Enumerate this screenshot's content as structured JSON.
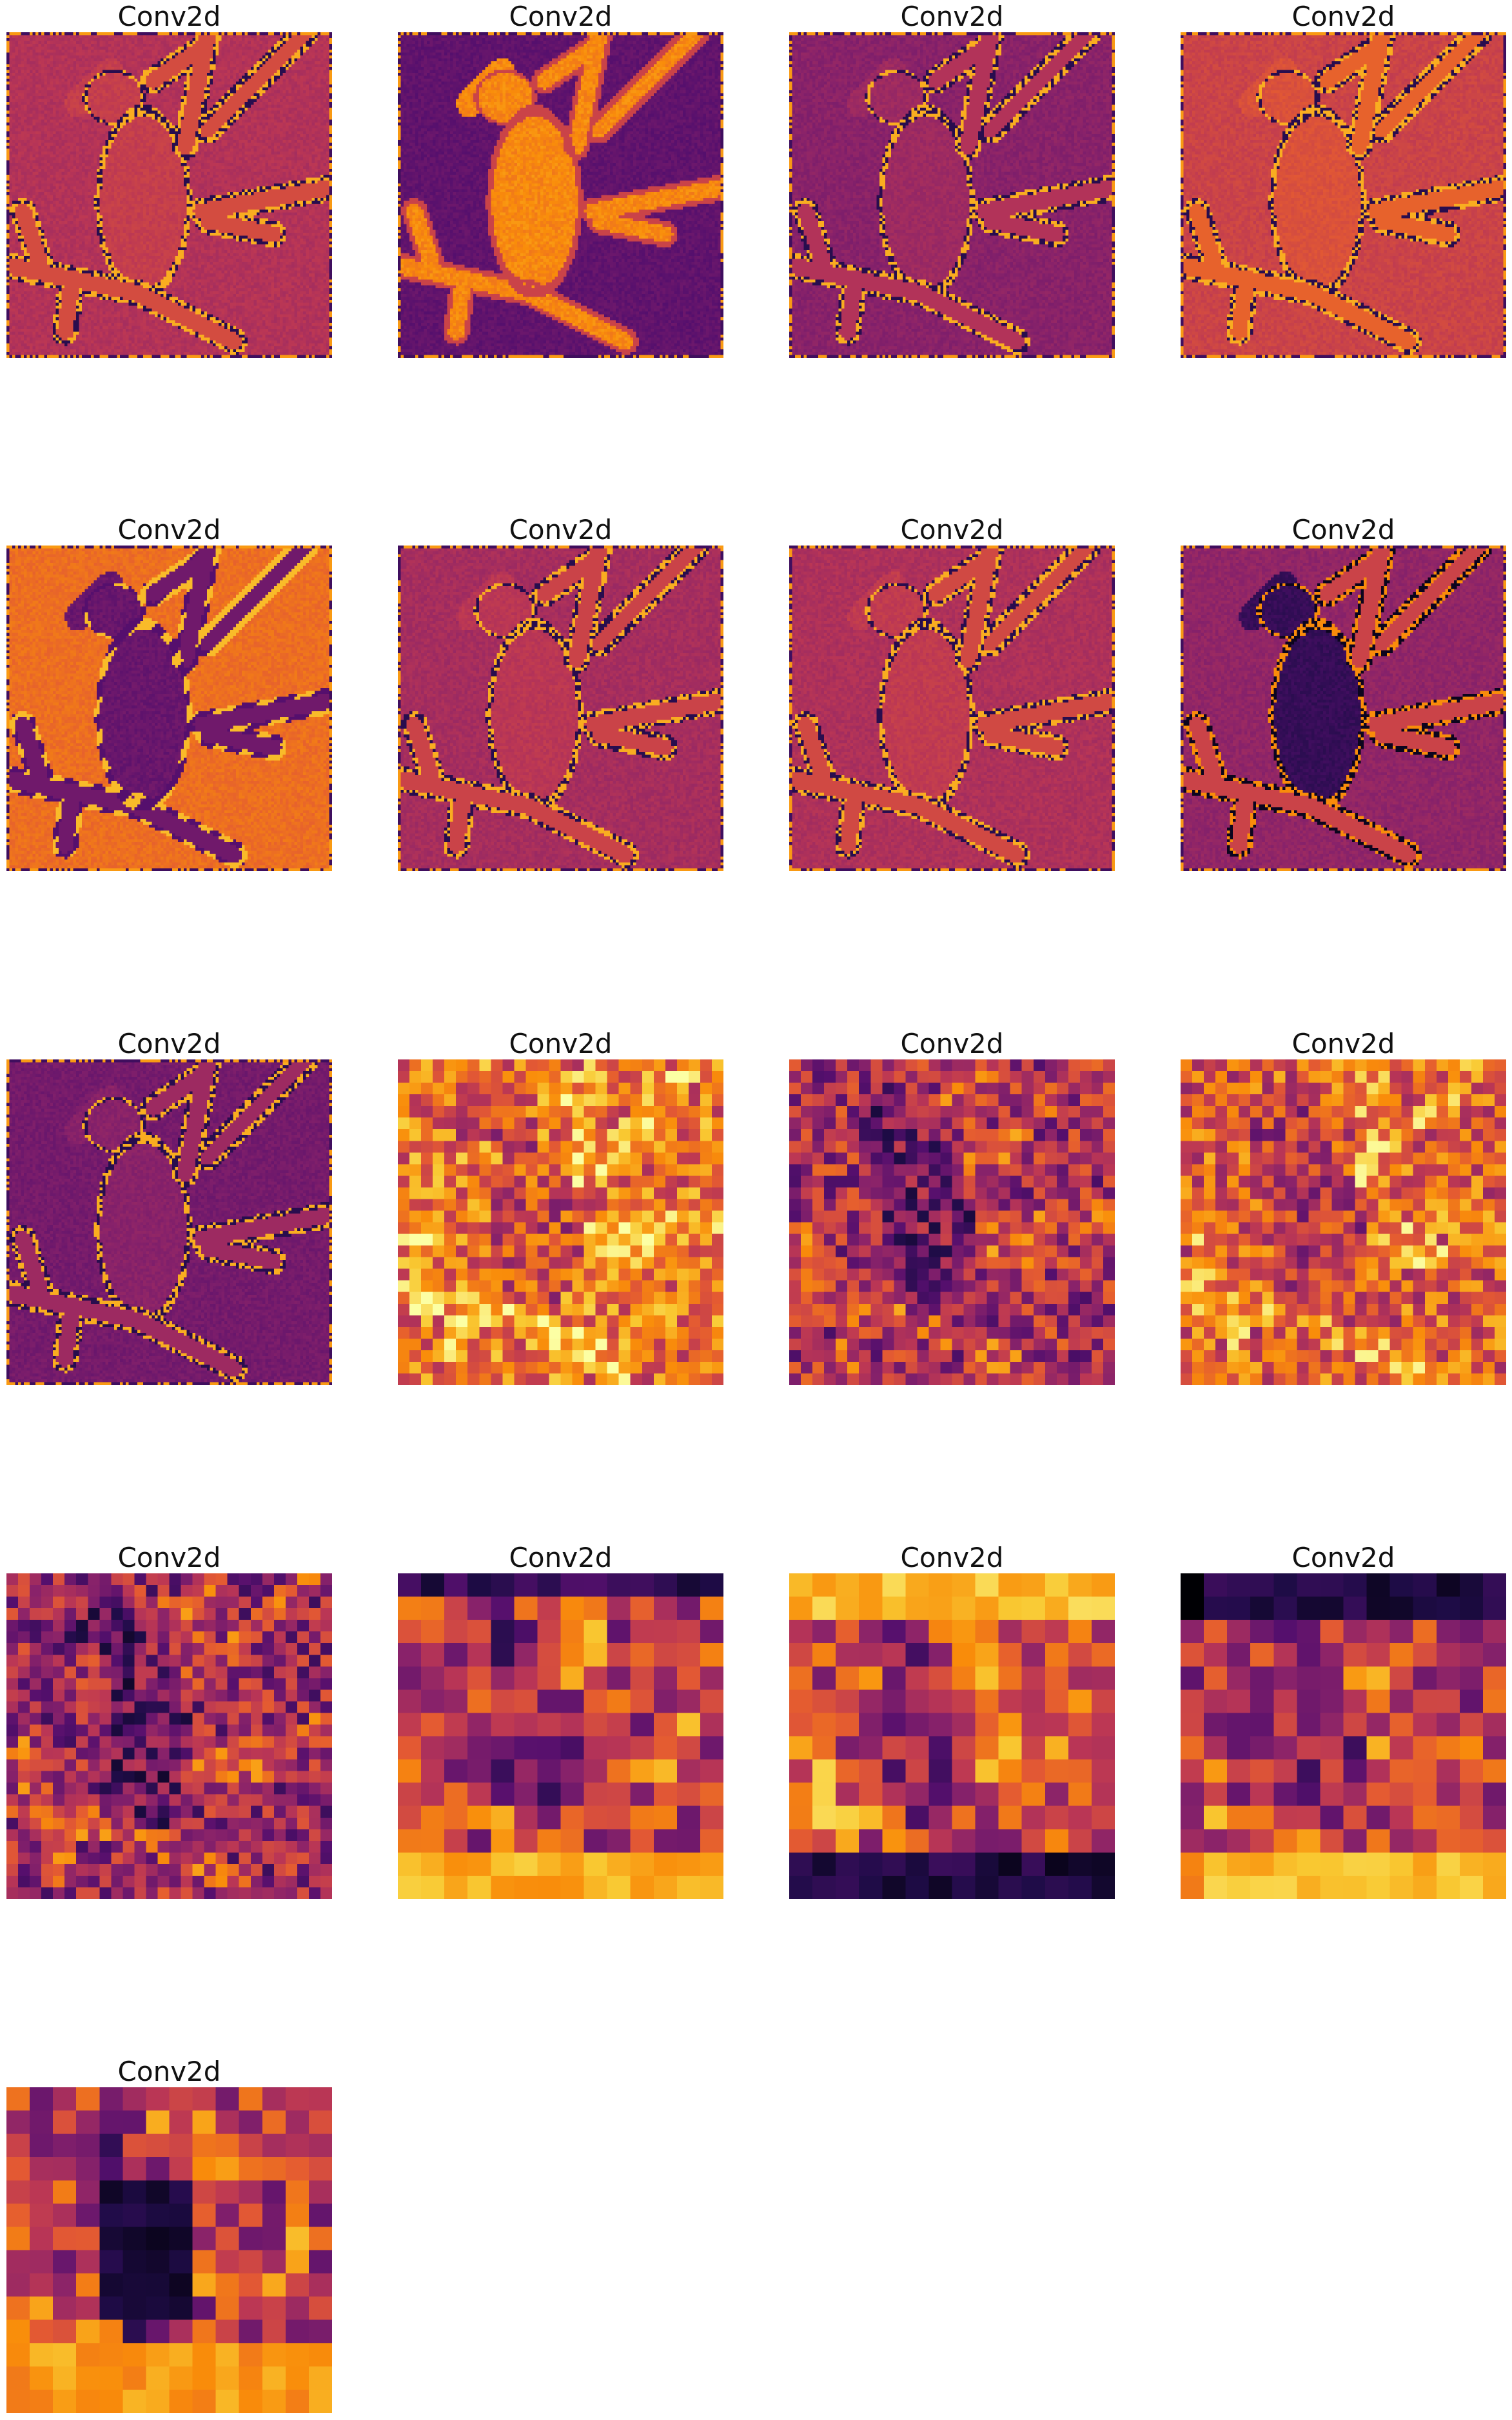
{
  "chart_data": {
    "type": "heatmap",
    "colormap": "inferno",
    "layout": "grid of 4 columns, 5 rows",
    "axes": "off",
    "panels": [
      {
        "title": "Conv2d",
        "resolution": 112,
        "pattern": "edge",
        "base": 0.48,
        "seed": 1
      },
      {
        "title": "Conv2d",
        "resolution": 112,
        "pattern": "bright-bird",
        "base": 0.28,
        "seed": 2
      },
      {
        "title": "Conv2d",
        "resolution": 112,
        "pattern": "edge",
        "base": 0.38,
        "seed": 3
      },
      {
        "title": "Conv2d",
        "resolution": 112,
        "pattern": "edge",
        "base": 0.55,
        "seed": 4
      },
      {
        "title": "Conv2d",
        "resolution": 112,
        "pattern": "dark-bird",
        "base": 0.68,
        "seed": 5
      },
      {
        "title": "Conv2d",
        "resolution": 112,
        "pattern": "edge",
        "base": 0.45,
        "seed": 6
      },
      {
        "title": "Conv2d",
        "resolution": 112,
        "pattern": "edge",
        "base": 0.47,
        "seed": 7
      },
      {
        "title": "Conv2d",
        "resolution": 112,
        "pattern": "dark-edge",
        "base": 0.4,
        "seed": 8
      },
      {
        "title": "Conv2d",
        "resolution": 112,
        "pattern": "edge",
        "base": 0.33,
        "seed": 9
      },
      {
        "title": "Conv2d",
        "resolution": 28,
        "pattern": "blocks",
        "base": 0.68,
        "seed": 10
      },
      {
        "title": "Conv2d",
        "resolution": 28,
        "pattern": "blocks",
        "base": 0.45,
        "seed": 11
      },
      {
        "title": "Conv2d",
        "resolution": 28,
        "pattern": "blocks",
        "base": 0.62,
        "seed": 12
      },
      {
        "title": "Conv2d",
        "resolution": 28,
        "pattern": "blocks",
        "base": 0.42,
        "seed": 13
      },
      {
        "title": "Conv2d",
        "resolution": 14,
        "pattern": "coarse",
        "base": 0.5,
        "seed": 14
      },
      {
        "title": "Conv2d",
        "resolution": 14,
        "pattern": "coarse-top-bright",
        "base": 0.55,
        "seed": 15
      },
      {
        "title": "Conv2d",
        "resolution": 14,
        "pattern": "coarse-bottom-bright",
        "base": 0.5,
        "seed": 16
      },
      {
        "title": "Conv2d",
        "resolution": 14,
        "pattern": "coarse-center-dark",
        "base": 0.5,
        "seed": 17
      }
    ]
  }
}
